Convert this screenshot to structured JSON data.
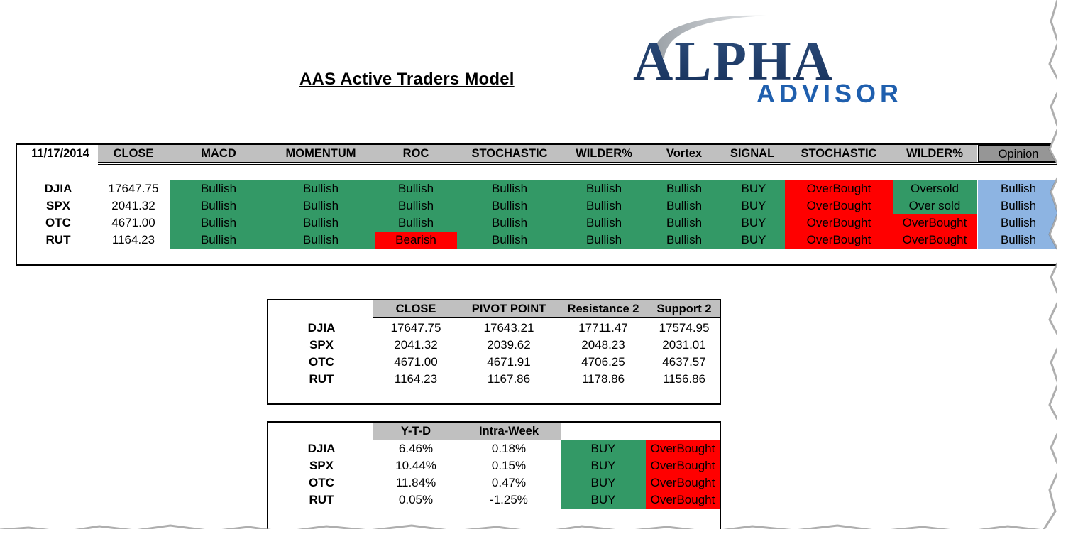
{
  "title": "AAS Active Traders Model",
  "logo": {
    "line1": "ALPHA",
    "line2": "ADVISOR"
  },
  "colors": {
    "bullish": "#339966",
    "overbought": "#ff0000",
    "opinion": "#8db4e2",
    "header": "#c0c0c0"
  },
  "model_table": {
    "date": "11/17/2014",
    "headers": [
      "CLOSE",
      "MACD",
      "MOMENTUM",
      "ROC",
      "STOCHASTIC",
      "WILDER%",
      "Vortex",
      "SIGNAL",
      "STOCHASTIC",
      "WILDER%",
      "Opinion"
    ],
    "rows": [
      {
        "label": "DJIA",
        "close": "17647.75",
        "macd": "Bullish",
        "momentum": "Bullish",
        "roc": "Bullish",
        "stochastic": "Bullish",
        "wilder": "Bullish",
        "vortex": "Bullish",
        "signal": "BUY",
        "stochastic2": "OverBought",
        "wilder2": "Oversold",
        "opinion": "Bullish"
      },
      {
        "label": "SPX",
        "close": "2041.32",
        "macd": "Bullish",
        "momentum": "Bullish",
        "roc": "Bullish",
        "stochastic": "Bullish",
        "wilder": "Bullish",
        "vortex": "Bullish",
        "signal": "BUY",
        "stochastic2": "OverBought",
        "wilder2": "Over sold",
        "opinion": "Bullish"
      },
      {
        "label": "OTC",
        "close": "4671.00",
        "macd": "Bullish",
        "momentum": "Bullish",
        "roc": "Bullish",
        "stochastic": "Bullish",
        "wilder": "Bullish",
        "vortex": "Bullish",
        "signal": "BUY",
        "stochastic2": "OverBought",
        "wilder2": "OverBought",
        "opinion": "Bullish"
      },
      {
        "label": "RUT",
        "close": "1164.23",
        "macd": "Bullish",
        "momentum": "Bullish",
        "roc": "Bearish",
        "stochastic": "Bullish",
        "wilder": "Bullish",
        "vortex": "Bullish",
        "signal": "BUY",
        "stochastic2": "OverBought",
        "wilder2": "OverBought",
        "opinion": "Bullish"
      }
    ]
  },
  "pivot_table": {
    "headers": [
      "CLOSE",
      "PIVOT POINT",
      "Resistance 2",
      "Support 2"
    ],
    "rows": [
      {
        "label": "DJIA",
        "close": "17647.75",
        "pivot": "17643.21",
        "r2": "17711.47",
        "s2": "17574.95"
      },
      {
        "label": "SPX",
        "close": "2041.32",
        "pivot": "2039.62",
        "r2": "2048.23",
        "s2": "2031.01"
      },
      {
        "label": "OTC",
        "close": "4671.00",
        "pivot": "4671.91",
        "r2": "4706.25",
        "s2": "4637.57"
      },
      {
        "label": "RUT",
        "close": "1164.23",
        "pivot": "1167.86",
        "r2": "1178.86",
        "s2": "1156.86"
      }
    ]
  },
  "perf_table": {
    "headers": [
      "Y-T-D",
      "Intra-Week"
    ],
    "rows": [
      {
        "label": "DJIA",
        "ytd": "6.46%",
        "week": "0.18%",
        "signal": "BUY",
        "status": "OverBought"
      },
      {
        "label": "SPX",
        "ytd": "10.44%",
        "week": "0.15%",
        "signal": "BUY",
        "status": "OverBought"
      },
      {
        "label": "OTC",
        "ytd": "11.84%",
        "week": "0.47%",
        "signal": "BUY",
        "status": "OverBought"
      },
      {
        "label": "RUT",
        "ytd": "0.05%",
        "week": "-1.25%",
        "signal": "BUY",
        "status": "OverBought"
      }
    ]
  }
}
